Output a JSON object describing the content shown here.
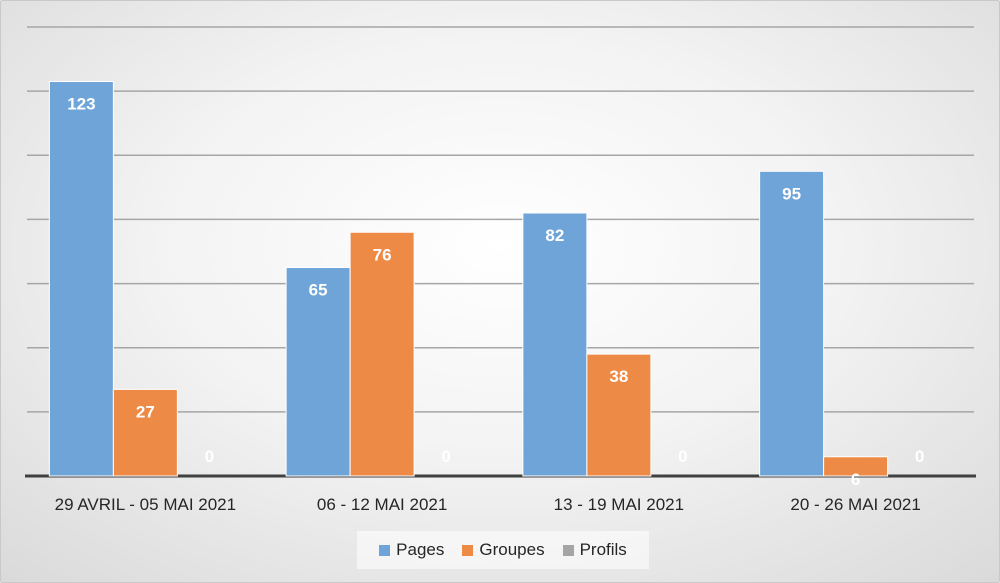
{
  "chart_data": {
    "type": "bar",
    "title": "",
    "xlabel": "",
    "ylabel": "",
    "categories": [
      "29 AVRIL - 05 MAI 2021",
      "06 - 12 MAI 2021",
      "13 - 19 MAI 2021",
      "20 - 26 MAI 2021"
    ],
    "series": [
      {
        "name": "Pages",
        "color": "#6fa4d8",
        "values": [
          123,
          65,
          82,
          95
        ]
      },
      {
        "name": "Groupes",
        "color": "#ed8a45",
        "values": [
          27,
          76,
          38,
          6
        ]
      },
      {
        "name": "Profils",
        "color": "#a5a5a5",
        "values": [
          0,
          0,
          0,
          0
        ]
      }
    ],
    "ylim": [
      0,
      140
    ],
    "y_gridline_step": 20,
    "grid": true,
    "y_tick_labels_visible": false,
    "data_labels": true,
    "legend_position": "bottom"
  }
}
